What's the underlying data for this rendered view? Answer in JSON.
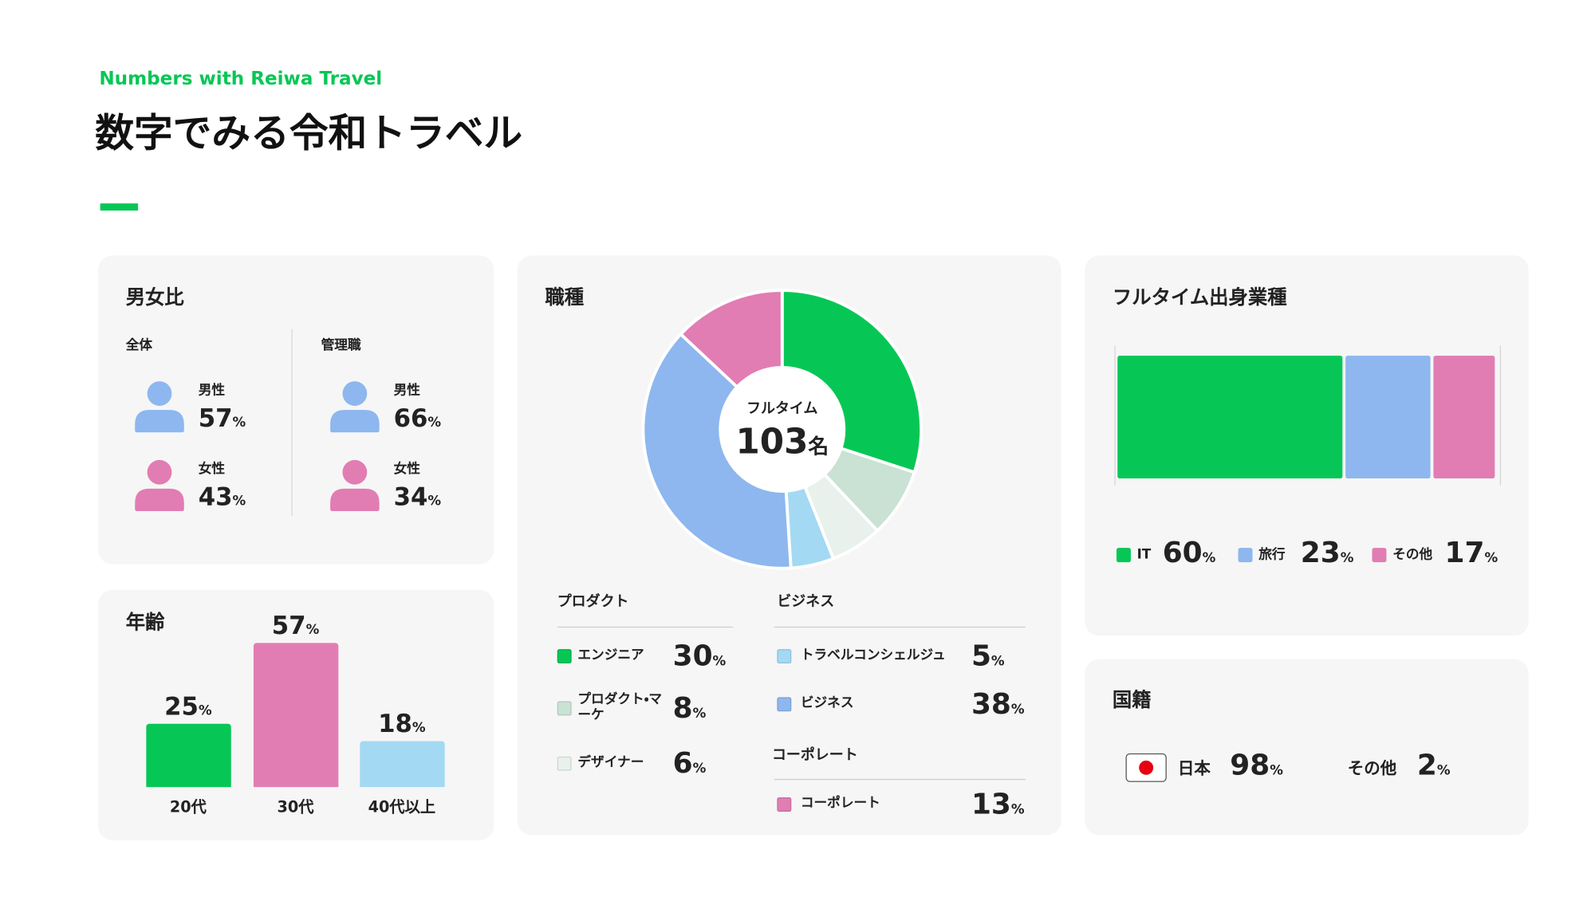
{
  "header": {
    "eyebrow": "Numbers with Reiwa Travel",
    "title": "数字でみる令和トラベル"
  },
  "chart_data": [
    {
      "type": "icon-stat",
      "title": "男女比",
      "unit": "%",
      "colors": [
        "#8db7ee",
        "#e17db3"
      ],
      "groups": [
        {
          "name": "全体",
          "categories": [
            "男性",
            "女性"
          ],
          "values": [
            57,
            43
          ]
        },
        {
          "name": "管理職",
          "categories": [
            "男性",
            "女性"
          ],
          "values": [
            66,
            34
          ]
        }
      ]
    },
    {
      "type": "donut",
      "title": "職種",
      "center_label": "フルタイム",
      "center_value": 103,
      "center_unit": "名",
      "unit": "%",
      "groups": [
        {
          "name": "プロダクト",
          "categories": [
            "エンジニア",
            "プロダクト・マーケ",
            "デザイナー"
          ],
          "values": [
            30,
            8,
            6
          ],
          "colors": [
            "#06c755",
            "#c9e2d3",
            "#e8f1ec"
          ]
        },
        {
          "name": "ビジネス",
          "categories": [
            "トラベルコンシェルジュ",
            "ビジネス"
          ],
          "values": [
            5,
            38
          ],
          "colors": [
            "#a3d9f3",
            "#8db7ee"
          ]
        },
        {
          "name": "コーポレート",
          "categories": [
            "コーポレート"
          ],
          "values": [
            13
          ],
          "colors": [
            "#e17db3"
          ]
        }
      ]
    },
    {
      "type": "stacked-bar",
      "title": "フルタイム出身業種",
      "unit": "%",
      "xlim": [
        0,
        100
      ],
      "series": [
        {
          "name": "IT",
          "color": "#06c755",
          "values": [
            60
          ]
        },
        {
          "name": "旅行",
          "color": "#8db7ee",
          "values": [
            23
          ]
        },
        {
          "name": "その他",
          "color": "#e17db3",
          "values": [
            17
          ]
        }
      ]
    },
    {
      "type": "bar",
      "title": "年齢",
      "unit": "%",
      "categories": [
        "20代",
        "30代",
        "40代以上"
      ],
      "values": [
        25,
        57,
        18
      ],
      "colors": [
        "#06c755",
        "#e17db3",
        "#a3d9f3"
      ]
    },
    {
      "type": "stat",
      "title": "国籍",
      "unit": "%",
      "categories": [
        "日本",
        "その他"
      ],
      "values": [
        98,
        2
      ]
    }
  ]
}
